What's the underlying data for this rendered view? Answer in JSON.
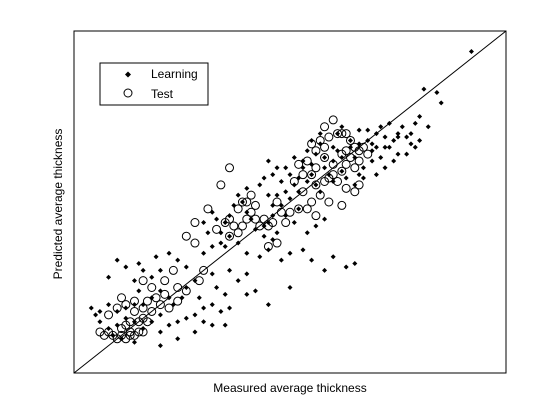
{
  "chart_data": {
    "type": "scatter",
    "title": "",
    "xlabel": "Measured average thickness",
    "ylabel": "Predicted average thickness",
    "xlim": [
      0,
      100
    ],
    "ylim": [
      0,
      100
    ],
    "show_ticks": false,
    "grid": false,
    "legend": {
      "placement": "top-left",
      "entries": [
        "Learning",
        "Test"
      ]
    },
    "reference_line": {
      "type": "identity",
      "label": ""
    },
    "colors": {
      "learning": "#000000",
      "test": "#000000",
      "axis": "#000000",
      "background": "#ffffff"
    },
    "series": [
      {
        "name": "Learning",
        "marker": "filled-diamond",
        "points": [
          [
            92,
            94
          ],
          [
            81,
            83
          ],
          [
            73,
            73
          ],
          [
            71,
            72
          ],
          [
            76,
            72
          ],
          [
            79,
            73
          ],
          [
            68,
            68
          ],
          [
            64,
            68
          ],
          [
            66,
            67
          ],
          [
            69,
            67
          ],
          [
            72,
            66
          ],
          [
            74,
            68
          ],
          [
            78,
            67
          ],
          [
            80,
            68
          ],
          [
            74,
            62
          ],
          [
            72,
            60
          ],
          [
            70,
            58
          ],
          [
            67,
            60
          ],
          [
            62,
            63
          ],
          [
            60,
            62
          ],
          [
            61,
            65
          ],
          [
            58,
            60
          ],
          [
            59,
            58
          ],
          [
            60,
            56
          ],
          [
            62,
            59
          ],
          [
            65,
            63
          ],
          [
            66,
            58
          ],
          [
            63,
            57
          ],
          [
            56,
            64
          ],
          [
            55,
            61
          ],
          [
            55,
            58
          ],
          [
            56,
            55
          ],
          [
            57,
            53
          ],
          [
            54,
            56
          ],
          [
            53,
            60
          ],
          [
            52,
            57
          ],
          [
            51,
            55
          ],
          [
            52,
            53
          ],
          [
            50,
            51
          ],
          [
            49,
            53
          ],
          [
            48,
            56
          ],
          [
            50,
            58
          ],
          [
            47,
            52
          ],
          [
            46,
            49
          ],
          [
            48,
            49
          ],
          [
            46,
            46
          ],
          [
            45,
            44
          ],
          [
            44,
            43
          ],
          [
            49,
            46
          ],
          [
            52,
            48
          ],
          [
            51,
            44
          ],
          [
            54,
            41
          ],
          [
            56,
            43
          ],
          [
            58,
            45
          ],
          [
            47,
            41
          ],
          [
            46,
            39
          ],
          [
            44,
            40
          ],
          [
            42,
            42
          ],
          [
            41,
            45
          ],
          [
            40,
            47
          ],
          [
            39,
            50
          ],
          [
            38,
            52
          ],
          [
            40,
            54
          ],
          [
            37,
            49
          ],
          [
            36,
            46
          ],
          [
            35,
            44
          ],
          [
            33,
            45
          ],
          [
            32,
            47
          ],
          [
            30,
            44
          ],
          [
            31,
            41
          ],
          [
            34,
            41
          ],
          [
            36,
            40
          ],
          [
            38,
            38
          ],
          [
            34,
            38
          ],
          [
            32,
            37
          ],
          [
            30,
            35
          ],
          [
            40,
            35
          ],
          [
            43,
            34
          ],
          [
            45,
            36
          ],
          [
            48,
            33
          ],
          [
            50,
            35
          ],
          [
            53,
            36
          ],
          [
            55,
            33
          ],
          [
            58,
            30
          ],
          [
            60,
            34
          ],
          [
            63,
            31
          ],
          [
            65,
            32
          ],
          [
            50,
            25
          ],
          [
            45,
            20
          ],
          [
            42,
            24
          ],
          [
            40,
            23
          ],
          [
            36,
            19
          ],
          [
            34,
            18
          ],
          [
            32,
            20
          ],
          [
            30,
            19
          ],
          [
            29,
            22
          ],
          [
            33,
            25
          ],
          [
            35,
            23
          ],
          [
            38,
            27
          ],
          [
            40,
            29
          ],
          [
            36,
            30
          ],
          [
            32,
            29
          ],
          [
            28,
            27
          ],
          [
            26,
            25
          ],
          [
            25,
            22
          ],
          [
            23,
            20
          ],
          [
            22,
            22
          ],
          [
            20,
            24
          ],
          [
            18,
            22
          ],
          [
            16,
            20
          ],
          [
            14,
            20
          ],
          [
            12,
            19
          ],
          [
            10,
            18
          ],
          [
            8,
            20
          ],
          [
            6,
            18
          ],
          [
            5,
            17
          ],
          [
            4,
            19
          ],
          [
            6,
            15
          ],
          [
            8,
            13
          ],
          [
            10,
            14
          ],
          [
            12,
            16
          ],
          [
            14,
            15
          ],
          [
            16,
            13
          ],
          [
            18,
            15
          ],
          [
            20,
            17
          ],
          [
            20,
            12
          ],
          [
            22,
            14
          ],
          [
            24,
            15
          ],
          [
            26,
            16
          ],
          [
            28,
            17
          ],
          [
            30,
            15
          ],
          [
            32,
            14
          ],
          [
            35,
            14
          ],
          [
            28,
            12
          ],
          [
            24,
            10
          ],
          [
            20,
            8
          ],
          [
            14,
            9
          ],
          [
            11,
            10
          ],
          [
            9,
            11
          ],
          [
            15,
            24
          ],
          [
            18,
            28
          ],
          [
            14,
            27
          ],
          [
            16,
            30
          ],
          [
            20,
            30
          ],
          [
            24,
            33
          ],
          [
            22,
            35
          ],
          [
            19,
            34
          ],
          [
            15,
            32
          ],
          [
            12,
            31
          ],
          [
            10,
            33
          ],
          [
            8,
            28
          ],
          [
            26,
            31
          ],
          [
            35,
            37
          ],
          [
            45,
            52
          ],
          [
            53,
            62
          ],
          [
            57,
            67
          ],
          [
            61,
            70
          ],
          [
            62,
            72
          ],
          [
            66,
            71
          ],
          [
            68,
            71
          ],
          [
            70,
            70
          ],
          [
            73,
            66
          ],
          [
            75,
            64
          ],
          [
            77,
            64
          ],
          [
            79,
            66
          ],
          [
            82,
            72
          ],
          [
            78,
            70
          ],
          [
            75,
            69
          ],
          [
            69,
            65
          ],
          [
            64,
            66
          ],
          [
            60,
            66
          ],
          [
            58,
            63
          ],
          [
            57,
            70
          ],
          [
            55,
            68
          ],
          [
            54,
            65
          ],
          [
            51,
            63
          ],
          [
            49,
            60
          ],
          [
            46,
            58
          ],
          [
            44,
            57
          ],
          [
            43,
            55
          ],
          [
            47,
            60
          ],
          [
            45,
            62
          ],
          [
            65,
            55
          ],
          [
            67,
            57
          ],
          [
            69,
            62
          ],
          [
            71,
            63
          ],
          [
            70,
            66
          ],
          [
            72,
            69
          ],
          [
            75,
            70
          ],
          [
            77,
            69
          ],
          [
            80,
            75
          ],
          [
            84,
            82
          ],
          [
            85,
            79
          ]
        ]
      },
      {
        "name": "Test",
        "marker": "open-circle",
        "points": [
          [
            6,
            12
          ],
          [
            7,
            11
          ],
          [
            8,
            12
          ],
          [
            9,
            11
          ],
          [
            10,
            10
          ],
          [
            11,
            11
          ],
          [
            12,
            10
          ],
          [
            13,
            11
          ],
          [
            13,
            12
          ],
          [
            14,
            11
          ],
          [
            15,
            12
          ],
          [
            16,
            12
          ],
          [
            11,
            13
          ],
          [
            12,
            14
          ],
          [
            13,
            15
          ],
          [
            15,
            15
          ],
          [
            16,
            16
          ],
          [
            17,
            15
          ],
          [
            14,
            18
          ],
          [
            16,
            19
          ],
          [
            18,
            18
          ],
          [
            20,
            20
          ],
          [
            22,
            19
          ],
          [
            24,
            21
          ],
          [
            21,
            23
          ],
          [
            19,
            22
          ],
          [
            17,
            21
          ],
          [
            14,
            21
          ],
          [
            12,
            20
          ],
          [
            10,
            19
          ],
          [
            8,
            17
          ],
          [
            18,
            25
          ],
          [
            21,
            27
          ],
          [
            24,
            25
          ],
          [
            26,
            24
          ],
          [
            29,
            27
          ],
          [
            30,
            30
          ],
          [
            23,
            30
          ],
          [
            16,
            27
          ],
          [
            11,
            22
          ],
          [
            28,
            38
          ],
          [
            33,
            42
          ],
          [
            35,
            44
          ],
          [
            36,
            45
          ],
          [
            37,
            43
          ],
          [
            38,
            41
          ],
          [
            39,
            43
          ],
          [
            40,
            45
          ],
          [
            41,
            47
          ],
          [
            42,
            45
          ],
          [
            43,
            43
          ],
          [
            44,
            45
          ],
          [
            42,
            49
          ],
          [
            40,
            50
          ],
          [
            41,
            52
          ],
          [
            39,
            50
          ],
          [
            38,
            48
          ],
          [
            36,
            40
          ],
          [
            31,
            48
          ],
          [
            34,
            55
          ],
          [
            36,
            60
          ],
          [
            28,
            44
          ],
          [
            26,
            40
          ],
          [
            45,
            43
          ],
          [
            46,
            44
          ],
          [
            49,
            44
          ],
          [
            50,
            47
          ],
          [
            52,
            48
          ],
          [
            55,
            50
          ],
          [
            56,
            46
          ],
          [
            53,
            53
          ],
          [
            51,
            56
          ],
          [
            53,
            58
          ],
          [
            55,
            58
          ],
          [
            56,
            55
          ],
          [
            58,
            56
          ],
          [
            59,
            57
          ],
          [
            60,
            58
          ],
          [
            60,
            61
          ],
          [
            58,
            63
          ],
          [
            56,
            65
          ],
          [
            55,
            67
          ],
          [
            57,
            68
          ],
          [
            59,
            69
          ],
          [
            61,
            70
          ],
          [
            62,
            70
          ],
          [
            63,
            70
          ],
          [
            58,
            72
          ],
          [
            60,
            74
          ],
          [
            58,
            66
          ],
          [
            62,
            64
          ],
          [
            62,
            59
          ],
          [
            61,
            56
          ],
          [
            63,
            54
          ],
          [
            65,
            53
          ],
          [
            66,
            55
          ],
          [
            64,
            63
          ],
          [
            63,
            65
          ],
          [
            65,
            66
          ],
          [
            56,
            60
          ],
          [
            54,
            62
          ],
          [
            52,
            61
          ],
          [
            57,
            52
          ],
          [
            59,
            50
          ],
          [
            62,
            49
          ],
          [
            47,
            50
          ],
          [
            48,
            47
          ],
          [
            64,
            68
          ],
          [
            66,
            65
          ],
          [
            67,
            66
          ],
          [
            68,
            64
          ],
          [
            66,
            62
          ],
          [
            65,
            60
          ],
          [
            63,
            61
          ],
          [
            54,
            48
          ],
          [
            45,
            37
          ],
          [
            47,
            38
          ]
        ]
      }
    ]
  }
}
